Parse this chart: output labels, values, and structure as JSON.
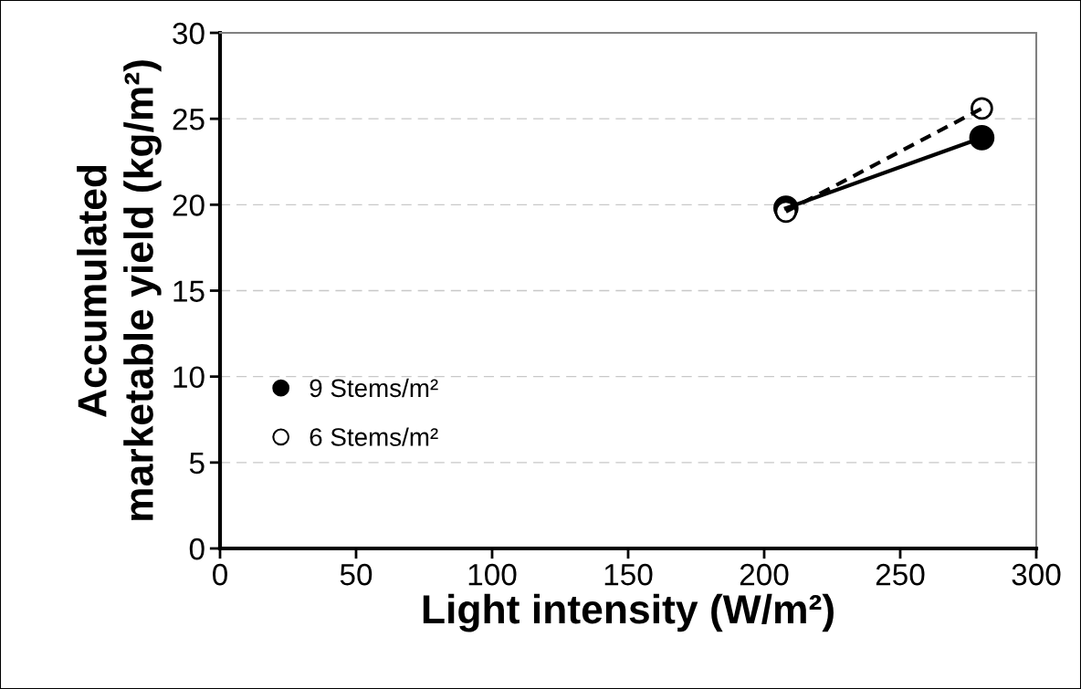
{
  "chart_data": {
    "type": "line",
    "xlabel": "Light intensity (W/m²)",
    "ylabel": "Accumulated\nmarketable yield (kg/m²)",
    "x": [
      208,
      280
    ],
    "series": [
      {
        "name": "9 Stems/m²",
        "color": "#000000",
        "values": [
          19.8,
          23.9
        ],
        "line_style": "solid",
        "colors": [
          "#000000",
          "#000000"
        ]
      },
      {
        "name": "6 Stems/m²",
        "color": "#000000",
        "values": [
          19.6,
          25.6
        ],
        "line_style": "dashed",
        "colors": [
          "#ffffff",
          "#ffffff"
        ]
      }
    ],
    "xlim": [
      0,
      300
    ],
    "xticks": [
      0,
      50,
      100,
      150,
      200,
      250,
      300
    ],
    "ylim": [
      0,
      30
    ],
    "yticks": [
      0,
      5,
      10,
      15,
      20,
      25,
      30
    ],
    "grid": "y",
    "legend": "lower left",
    "marker": "circle"
  }
}
